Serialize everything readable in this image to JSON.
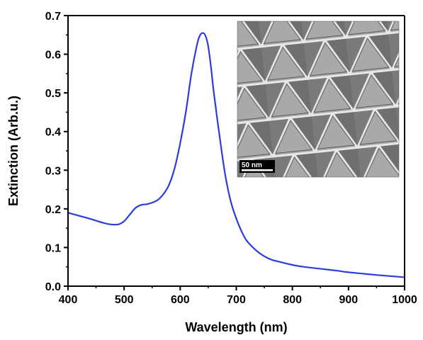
{
  "chart_data": {
    "type": "line",
    "title": "",
    "xlabel": "Wavelength (nm)",
    "ylabel": "Extinction (Arb.u.)",
    "xlim": [
      400,
      1000
    ],
    "ylim": [
      0.0,
      0.7
    ],
    "xticks": [
      "400",
      "500",
      "600",
      "700",
      "800",
      "900",
      "1000"
    ],
    "yticks": [
      "0.0",
      "0.1",
      "0.2",
      "0.3",
      "0.4",
      "0.5",
      "0.6",
      "0.7"
    ],
    "grid": false,
    "legend": "none",
    "series": [
      {
        "color": "#2b3be0",
        "x": [
          400,
          420,
          440,
          460,
          475,
          490,
          500,
          510,
          520,
          530,
          540,
          550,
          560,
          570,
          580,
          590,
          600,
          610,
          620,
          630,
          635,
          640,
          645,
          650,
          655,
          660,
          670,
          680,
          690,
          700,
          710,
          720,
          740,
          760,
          780,
          800,
          820,
          850,
          880,
          900,
          950,
          1000
        ],
        "y": [
          0.19,
          0.182,
          0.174,
          0.165,
          0.16,
          0.16,
          0.168,
          0.185,
          0.202,
          0.21,
          0.212,
          0.216,
          0.223,
          0.238,
          0.262,
          0.305,
          0.37,
          0.45,
          0.55,
          0.625,
          0.648,
          0.655,
          0.648,
          0.62,
          0.565,
          0.5,
          0.39,
          0.29,
          0.22,
          0.175,
          0.14,
          0.115,
          0.087,
          0.07,
          0.062,
          0.055,
          0.05,
          0.045,
          0.04,
          0.036,
          0.029,
          0.023
        ]
      }
    ]
  },
  "inset": {
    "description_icon": "sem-triangle-lattice-image",
    "scale_bar_label": "50 nm"
  }
}
